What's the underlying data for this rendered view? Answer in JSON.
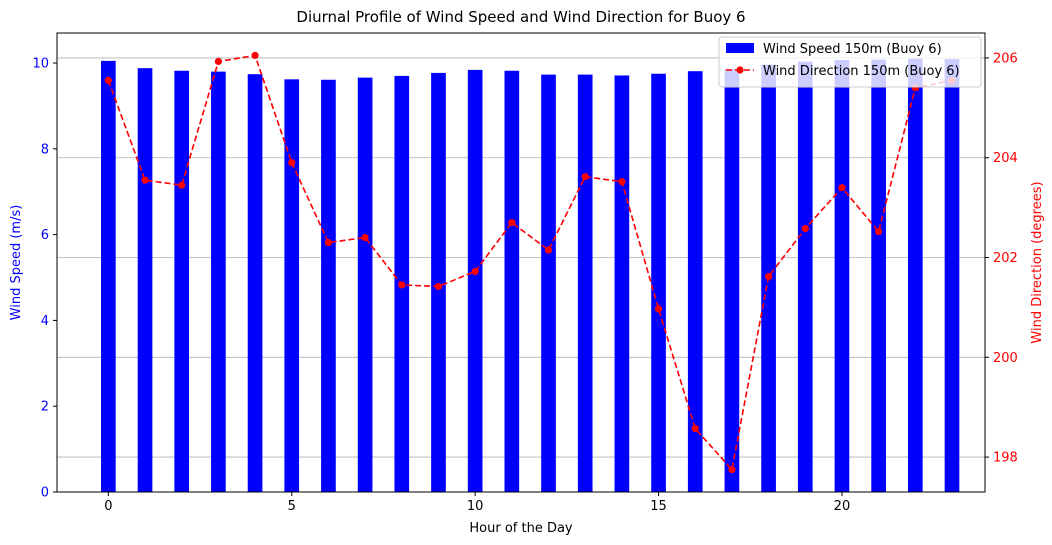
{
  "chart_data": {
    "type": "bar+line",
    "title": "Diurnal Profile of Wind Speed and Wind Direction for Buoy 6",
    "xlabel": "Hour of the Day",
    "x_ticks": [
      0,
      5,
      10,
      15,
      20
    ],
    "x_range": [
      -1.4,
      23.9
    ],
    "left_axis": {
      "label": "Wind Speed (m/s)",
      "color": "#0000ff",
      "range": [
        0,
        10.7
      ],
      "ticks": [
        0,
        2,
        4,
        6,
        8,
        10
      ]
    },
    "right_axis": {
      "label": "Wind Direction (degrees)",
      "color": "#ff0000",
      "range": [
        197.3,
        206.5
      ],
      "ticks": [
        198,
        200,
        202,
        204,
        206
      ]
    },
    "grid": "horizontal (right axis)",
    "legend_position": "top-right",
    "series": [
      {
        "name": "Wind Speed 150m (Buoy 6)",
        "kind": "bar",
        "axis": "left",
        "color": "#0000ff",
        "x": [
          0,
          1,
          2,
          3,
          4,
          5,
          6,
          7,
          8,
          9,
          10,
          11,
          12,
          13,
          14,
          15,
          16,
          17,
          18,
          19,
          20,
          21,
          22,
          23
        ],
        "values": [
          10.05,
          9.88,
          9.82,
          9.8,
          9.74,
          9.62,
          9.61,
          9.66,
          9.7,
          9.77,
          9.84,
          9.82,
          9.73,
          9.73,
          9.71,
          9.75,
          9.81,
          9.86,
          9.96,
          10.03,
          10.07,
          10.08,
          10.1,
          10.09
        ]
      },
      {
        "name": "Wind Direction 150m (Buoy 6)",
        "kind": "line",
        "axis": "right",
        "color": "#ff0000",
        "x": [
          0,
          1,
          2,
          3,
          4,
          5,
          6,
          7,
          8,
          9,
          10,
          11,
          12,
          13,
          14,
          15,
          16,
          17,
          18,
          19,
          20,
          21,
          22,
          23
        ],
        "values": [
          205.55,
          203.55,
          203.45,
          205.93,
          206.05,
          203.9,
          202.3,
          202.4,
          201.45,
          201.42,
          201.72,
          202.7,
          202.15,
          203.62,
          203.52,
          200.97,
          198.57,
          197.75,
          201.62,
          202.58,
          203.4,
          202.52,
          205.4,
          205.55
        ]
      }
    ]
  }
}
